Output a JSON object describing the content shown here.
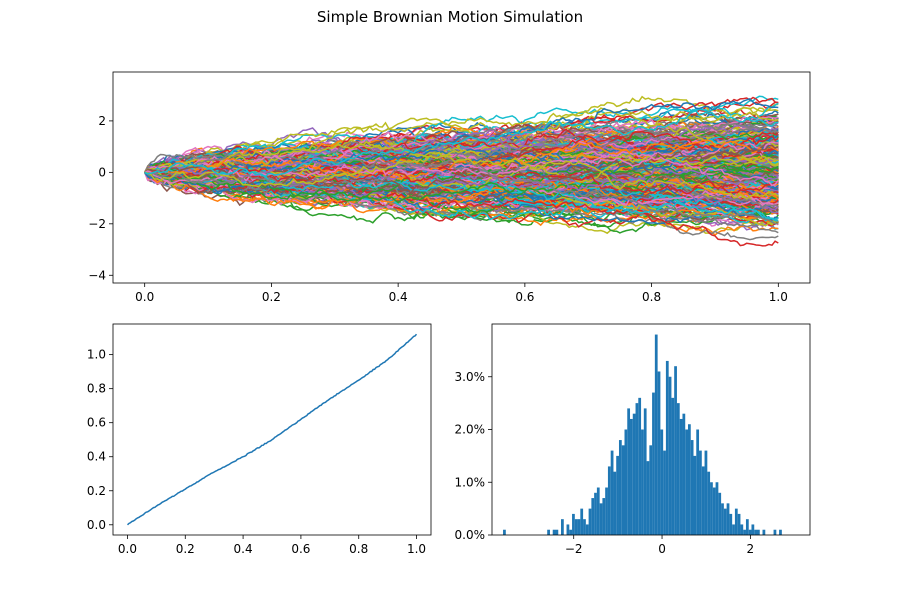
{
  "figure": {
    "title": "Simple Brownian Motion Simulation"
  },
  "palette": [
    "#1f77b4",
    "#ff7f0e",
    "#2ca02c",
    "#d62728",
    "#9467bd",
    "#8c564b",
    "#e377c2",
    "#7f7f7f",
    "#bcbd22",
    "#17becf"
  ],
  "chart_data": [
    {
      "type": "line",
      "title": "",
      "description_of_series": "many simulated Brownian motion paths starting at 0",
      "n_series": 500,
      "n_steps": 1000,
      "xlim": [
        -0.05,
        1.05
      ],
      "ylim": [
        -4.3,
        3.9
      ],
      "xticks": [
        0.0,
        0.2,
        0.4,
        0.6,
        0.8,
        1.0
      ],
      "xtick_labels": [
        "0.0",
        "0.2",
        "0.4",
        "0.6",
        "0.8",
        "1.0"
      ],
      "yticks": [
        -4,
        -2,
        0,
        2
      ],
      "ytick_labels": [
        "−4",
        "−2",
        "0",
        "2"
      ],
      "xlabel": "",
      "ylabel": "",
      "grid": false
    },
    {
      "type": "line",
      "title": "",
      "x": [
        0.0,
        0.1,
        0.2,
        0.3,
        0.4,
        0.5,
        0.6,
        0.7,
        0.8,
        0.9,
        1.0
      ],
      "y": [
        0.0,
        0.11,
        0.21,
        0.31,
        0.4,
        0.5,
        0.62,
        0.74,
        0.85,
        0.97,
        1.12
      ],
      "color": "#1f77b4",
      "xlim": [
        -0.05,
        1.05
      ],
      "ylim": [
        -0.06,
        1.18
      ],
      "xticks": [
        0.0,
        0.2,
        0.4,
        0.6,
        0.8,
        1.0
      ],
      "xtick_labels": [
        "0.0",
        "0.2",
        "0.4",
        "0.6",
        "0.8",
        "1.0"
      ],
      "yticks": [
        0.0,
        0.2,
        0.4,
        0.6,
        0.8,
        1.0
      ],
      "ytick_labels": [
        "0.0",
        "0.2",
        "0.4",
        "0.6",
        "0.8",
        "1.0"
      ],
      "xlabel": "",
      "ylabel": "",
      "grid": false
    },
    {
      "type": "bar",
      "title": "",
      "subtype": "histogram",
      "bin_start": -3.6,
      "bin_width": 0.0625,
      "values": [
        0.1,
        0,
        0,
        0,
        0,
        0,
        0,
        0,
        0,
        0,
        0,
        0,
        0,
        0,
        0,
        0,
        0.1,
        0,
        0.1,
        0.1,
        0,
        0.3,
        0,
        0.2,
        0.1,
        0.4,
        0.3,
        0.3,
        0.5,
        0.3,
        0.2,
        0.5,
        0.7,
        0.8,
        0.9,
        0.6,
        0.7,
        0.9,
        1.3,
        1.6,
        1.2,
        1.5,
        1.8,
        1.7,
        2.0,
        2.4,
        2.2,
        2.3,
        2.5,
        2.6,
        2.0,
        2.4,
        1.4,
        1.7,
        2.7,
        3.8,
        3.1,
        2.0,
        1.6,
        3.3,
        3.0,
        2.6,
        3.2,
        2.5,
        2.2,
        2.3,
        2.0,
        2.1,
        1.8,
        1.5,
        2.0,
        1.6,
        1.3,
        1.6,
        1.2,
        1.0,
        0.9,
        1.0,
        0.8,
        0.6,
        0.5,
        0.6,
        0.4,
        0.2,
        0.5,
        0.4,
        0.2,
        0.1,
        0.3,
        0.1,
        0.2,
        0.1,
        0.1,
        0,
        0.1,
        0,
        0,
        0,
        0.1,
        0,
        0.1
      ],
      "color": "#1f77b4",
      "xlim": [
        -3.85,
        3.35
      ],
      "ylim": [
        0,
        4.0
      ],
      "xticks": [
        -2,
        0,
        2
      ],
      "xtick_labels": [
        "−2",
        "0",
        "2"
      ],
      "yticks": [
        0,
        1,
        2,
        3
      ],
      "ytick_labels": [
        "0.0%",
        "1.0%",
        "2.0%",
        "3.0%"
      ],
      "xlabel": "",
      "ylabel": "",
      "grid": false
    }
  ]
}
